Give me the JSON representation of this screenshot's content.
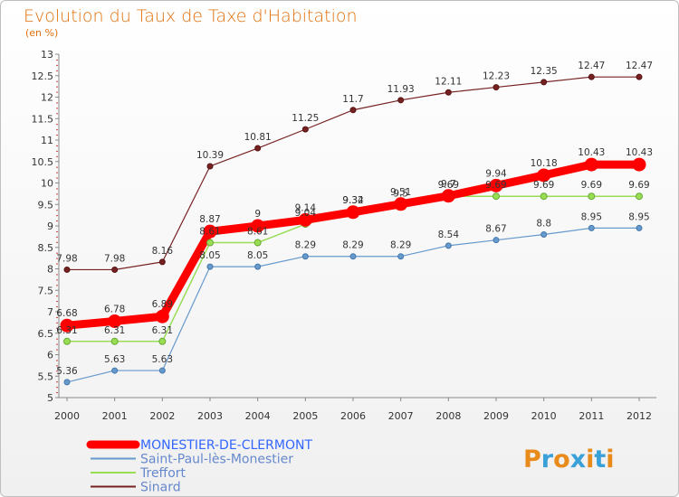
{
  "chart_data": {
    "type": "line",
    "title": "Evolution du Taux de Taxe d'Habitation",
    "subtitle": "(en %)",
    "x": [
      "2000",
      "2001",
      "2002",
      "2003",
      "2004",
      "2005",
      "2006",
      "2007",
      "2008",
      "2009",
      "2010",
      "2011",
      "2012"
    ],
    "ylim": [
      5,
      13
    ],
    "yticks": [
      "5",
      "5.5",
      "6",
      "6.5",
      "7",
      "7.5",
      "8",
      "8.5",
      "9",
      "9.5",
      "10",
      "10.5",
      "11",
      "11.5",
      "12",
      "12.5",
      "13"
    ],
    "grid": false,
    "legend_position": "bottom-left",
    "series": [
      {
        "name": "MONESTIER-DE-CLERMONT",
        "color": "#ff0000",
        "labels": [
          "6.68",
          "6.78",
          "6.89",
          "8.87",
          "9",
          "9.14",
          "9.32",
          "9.51",
          "9.7",
          "9.94",
          "10.18",
          "10.43",
          "10.43"
        ],
        "values": [
          6.68,
          6.78,
          6.89,
          8.87,
          9.0,
          9.14,
          9.32,
          9.51,
          9.7,
          9.94,
          10.18,
          10.43,
          10.43
        ]
      },
      {
        "name": "Saint-Paul-lès-Monestier",
        "color": "#6699cc",
        "labels": [
          "5.36",
          "5.63",
          "5.63",
          "8.05",
          "8.05",
          "8.29",
          "8.29",
          "8.29",
          "8.54",
          "8.67",
          "8.8",
          "8.95",
          "8.95"
        ],
        "values": [
          5.36,
          5.63,
          5.63,
          8.05,
          8.05,
          8.29,
          8.29,
          8.29,
          8.54,
          8.67,
          8.8,
          8.95,
          8.95
        ]
      },
      {
        "name": "Treffort",
        "color": "#99dd55",
        "labels": [
          "6.31",
          "6.31",
          "6.31",
          "8.61",
          "8.61",
          "9.04",
          "9.34",
          "9.5",
          "9.69",
          "9.69",
          "9.69",
          "9.69",
          "9.69"
        ],
        "values": [
          6.31,
          6.31,
          6.31,
          8.61,
          8.61,
          9.04,
          9.34,
          9.5,
          9.69,
          9.69,
          9.69,
          9.69,
          9.69
        ]
      },
      {
        "name": "Sinard",
        "color": "#772222",
        "labels": [
          "7.98",
          "7.98",
          "8.16",
          "10.39",
          "10.81",
          "11.25",
          "11.7",
          "11.93",
          "12.11",
          "12.23",
          "12.35",
          "12.47",
          "12.47"
        ],
        "values": [
          7.98,
          7.98,
          8.16,
          10.39,
          10.81,
          11.25,
          11.7,
          11.93,
          12.11,
          12.23,
          12.35,
          12.47,
          12.47
        ]
      }
    ]
  },
  "logo": {
    "text": "Proxiti",
    "colors": [
      "#e88b1a",
      "#3aa0d8",
      "#e88b1a",
      "#3aa0d8",
      "#e88b1a",
      "#3aa0d8",
      "#e88b1a"
    ]
  }
}
